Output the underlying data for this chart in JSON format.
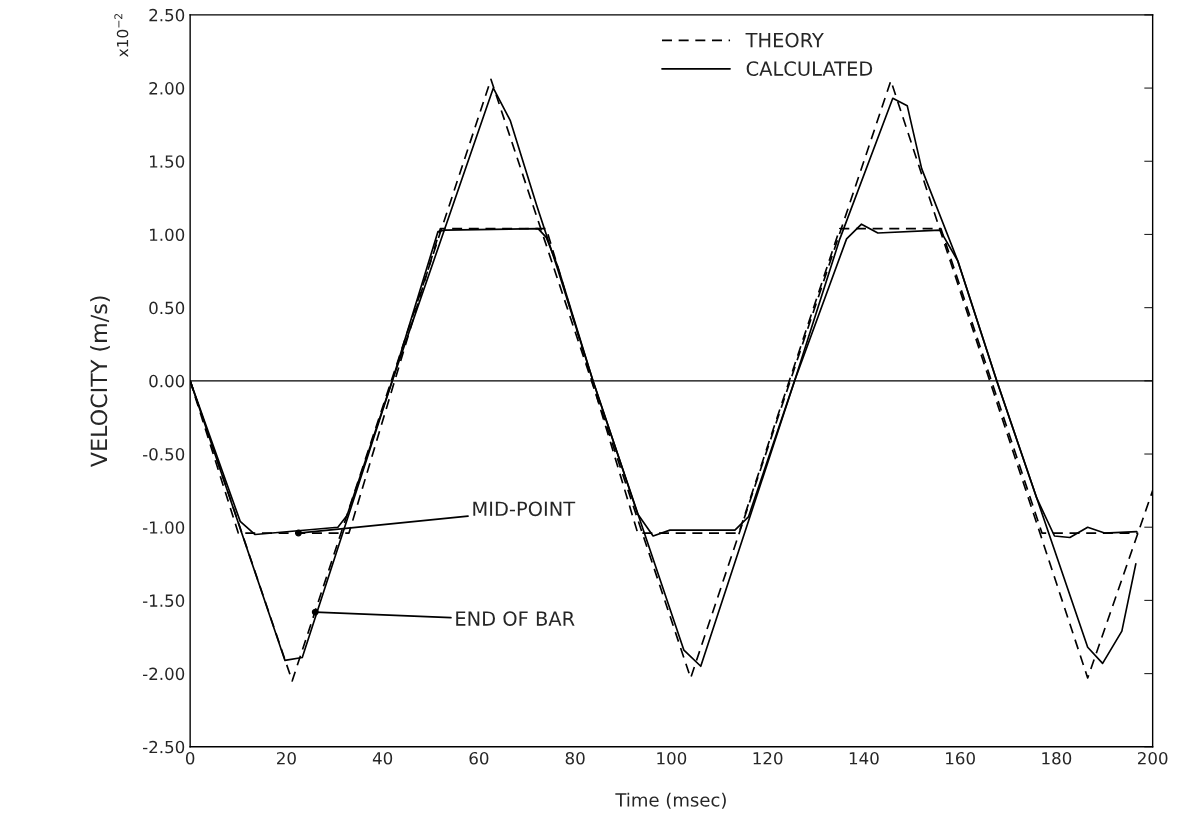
{
  "chart_data": {
    "type": "line",
    "xlabel": "Time (msec)",
    "ylabel": "VELOCITY (m/s)",
    "xlim": [
      0,
      200
    ],
    "xticks": [
      0,
      20,
      40,
      60,
      80,
      100,
      120,
      140,
      160,
      180,
      200
    ],
    "ylim": [
      -2.5,
      2.5
    ],
    "yticks": [
      {
        "value": -2.5,
        "label": "-2.50"
      },
      {
        "value": -2,
        "label": "-2.00"
      },
      {
        "value": -1.5,
        "label": "-1.50"
      },
      {
        "value": -1,
        "label": "-1.00"
      },
      {
        "value": -0.5,
        "label": "-0.50"
      },
      {
        "value": 0,
        "label": "0.00"
      },
      {
        "value": 0.5,
        "label": "0.50"
      },
      {
        "value": 1,
        "label": "1.00"
      },
      {
        "value": 1.5,
        "label": "1.50"
      },
      {
        "value": 2,
        "label": "2.00"
      },
      {
        "value": 2.5,
        "label": "2.50"
      }
    ],
    "grid": false,
    "legend": "top",
    "series": [
      {
        "name": "THEORY",
        "color": "#000000",
        "line_style": "dashed",
        "x": [
          0,
          21.2,
          62.5,
          104,
          145.6,
          186.5,
          200
        ],
        "values": [
          0,
          -2.05,
          2.06,
          -2.03,
          2.05,
          -2.03,
          -0.75
        ]
      },
      {
        "name": "CALCULATED",
        "color": "#000000",
        "line_style": "solid",
        "x": [
          0,
          19.7,
          23.3,
          42,
          63,
          66.5,
          72,
          76.2,
          83.7,
          102.6,
          106.1,
          125.6,
          135,
          146,
          149,
          152,
          159.5,
          167.6,
          186.5,
          189.6,
          193.6,
          196.5
        ],
        "values": [
          0,
          -1.91,
          -1.89,
          0,
          2.0,
          1.78,
          1.2,
          0.78,
          0,
          -1.84,
          -1.95,
          0,
          0.97,
          1.93,
          1.88,
          1.45,
          0.82,
          0,
          -1.82,
          -1.93,
          -1.71,
          -1.25
        ]
      },
      {
        "color": "#000000",
        "line_style": "dashed",
        "x": [
          0,
          10,
          33,
          52,
          74,
          93,
          114,
          135,
          156,
          177,
          197
        ],
        "values": [
          0,
          -1.04,
          -1.04,
          1.04,
          1.04,
          -1.04,
          -1.04,
          1.04,
          1.04,
          -1.04,
          -1.04
        ]
      },
      {
        "color": "#000000",
        "line_style": "solid",
        "x": [
          0,
          10.4,
          13.5,
          30.7,
          32.6,
          42,
          51.5,
          53,
          72.3,
          74,
          76.4,
          83.7,
          93,
          96.2,
          99.7,
          113.2,
          116,
          125.6,
          136.4,
          139.5,
          142.9,
          155.8,
          159.5,
          167.6,
          175.9,
          179.6,
          182.8,
          186.5,
          190,
          196.7
        ],
        "values": [
          0,
          -0.96,
          -1.05,
          -1.0,
          -0.92,
          0,
          1.02,
          1.03,
          1.04,
          0.98,
          0.78,
          0,
          -0.91,
          -1.06,
          -1.02,
          -1.02,
          -0.93,
          0,
          0.97,
          1.07,
          1.01,
          1.03,
          0.82,
          0,
          -0.8,
          -1.06,
          -1.07,
          -1.0,
          -1.04,
          -1.03
        ]
      }
    ],
    "ref_lines": [
      {
        "axis": "y",
        "value": 0,
        "color": "#000000",
        "line_style": "solid"
      }
    ],
    "annotations": [
      {
        "text": "MID-POINT",
        "x": 22.5,
        "y": -1.04
      },
      {
        "text": "END OF BAR",
        "x": 26,
        "y": -1.58
      },
      "x10$^{−2}$"
    ]
  }
}
